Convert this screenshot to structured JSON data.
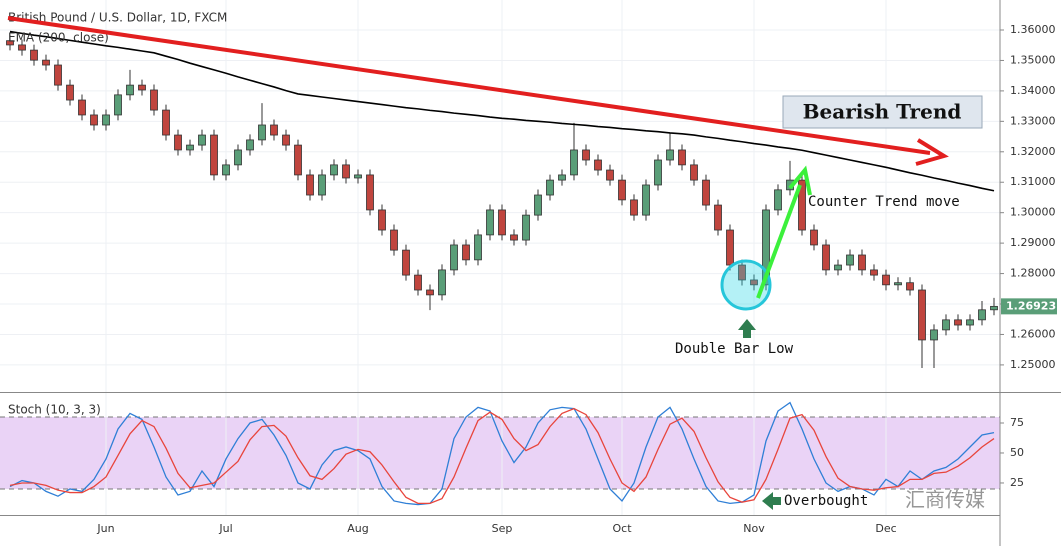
{
  "chart_data": [
    {
      "type": "candlestick",
      "title": "British Pound / U.S. Dollar, 1D, FXCM",
      "categories": [
        null,
        null,
        null,
        null,
        null,
        null,
        null,
        null,
        "Jun",
        null,
        null,
        null,
        null,
        null,
        null,
        null,
        null,
        null,
        "Jul",
        null,
        null,
        null,
        null,
        null,
        null,
        null,
        null,
        null,
        null,
        "Aug",
        null,
        null,
        null,
        null,
        null,
        null,
        null,
        null,
        null,
        null,
        null,
        "Sep",
        null,
        null,
        null,
        null,
        null,
        null,
        null,
        null,
        null,
        "Oct",
        null,
        null,
        null,
        null,
        null,
        null,
        null,
        null,
        null,
        null,
        "Nov",
        null,
        null,
        null,
        null,
        null,
        null,
        null,
        null,
        null,
        null,
        "Dec",
        null,
        null,
        null,
        null,
        null,
        null,
        null,
        null,
        null
      ],
      "open": [
        1.3565,
        1.3551,
        1.3534,
        1.3501,
        1.3485,
        1.3419,
        1.337,
        1.3321,
        1.3288,
        1.3321,
        1.3387,
        1.3419,
        1.3403,
        1.3337,
        1.3255,
        1.3206,
        1.3222,
        1.3255,
        1.3124,
        1.3157,
        1.3206,
        1.3239,
        1.3288,
        1.3255,
        1.3222,
        1.3124,
        1.3058,
        1.3124,
        1.3157,
        1.3114,
        1.3124,
        1.3009,
        1.2943,
        1.2877,
        1.2795,
        1.2746,
        1.273,
        1.2812,
        1.2894,
        1.2845,
        1.2927,
        1.3009,
        1.2927,
        1.291,
        1.2992,
        1.3058,
        1.3107,
        1.3124,
        1.3206,
        1.3173,
        1.314,
        1.3107,
        1.3042,
        1.2992,
        1.3091,
        1.3173,
        1.3206,
        1.3157,
        1.3107,
        1.3025,
        1.2943,
        1.2828,
        1.2779,
        1.2763,
        1.3009,
        1.3075,
        1.3107,
        1.2943,
        1.2894,
        1.2812,
        1.2828,
        1.2861,
        1.2812,
        1.2795,
        1.2763,
        1.277,
        1.2746,
        1.2582,
        1.2615,
        1.2648,
        1.2631,
        1.2648,
        1.2681
      ],
      "high": [
        1.3583,
        1.3569,
        1.3552,
        1.3519,
        1.3503,
        1.3437,
        1.3388,
        1.3339,
        1.3339,
        1.3405,
        1.3469,
        1.3437,
        1.3421,
        1.3355,
        1.3273,
        1.324,
        1.3273,
        1.3273,
        1.3175,
        1.3224,
        1.3257,
        1.336,
        1.3306,
        1.3273,
        1.324,
        1.3142,
        1.3142,
        1.3175,
        1.3175,
        1.3142,
        1.3142,
        1.3027,
        1.2961,
        1.2895,
        1.2813,
        1.2764,
        1.283,
        1.2912,
        1.2912,
        1.2945,
        1.3027,
        1.3027,
        1.2945,
        1.301,
        1.3076,
        1.3125,
        1.3142,
        1.3295,
        1.3224,
        1.3191,
        1.3158,
        1.3125,
        1.306,
        1.3109,
        1.3191,
        1.326,
        1.3224,
        1.3175,
        1.3125,
        1.3043,
        1.2961,
        1.2846,
        1.2797,
        1.3027,
        1.3093,
        1.317,
        1.3125,
        1.2961,
        1.2912,
        1.2846,
        1.2879,
        1.2879,
        1.283,
        1.2813,
        1.2788,
        1.2788,
        1.2764,
        1.2633,
        1.2666,
        1.2666,
        1.2666,
        1.271,
        1.272
      ],
      "low": [
        1.3533,
        1.3516,
        1.3483,
        1.3467,
        1.3401,
        1.3352,
        1.3303,
        1.327,
        1.327,
        1.3303,
        1.3369,
        1.3385,
        1.3319,
        1.3237,
        1.3188,
        1.3188,
        1.3204,
        1.3106,
        1.3106,
        1.3139,
        1.3188,
        1.3221,
        1.3237,
        1.3204,
        1.3106,
        1.304,
        1.304,
        1.3106,
        1.3096,
        1.3096,
        1.2991,
        1.2925,
        1.2859,
        1.2777,
        1.2728,
        1.268,
        1.2712,
        1.2794,
        1.2827,
        1.2827,
        1.2909,
        1.2909,
        1.2892,
        1.2892,
        1.2974,
        1.304,
        1.3089,
        1.3106,
        1.3155,
        1.3122,
        1.3089,
        1.3024,
        1.2974,
        1.2974,
        1.3073,
        1.3155,
        1.3139,
        1.3089,
        1.3007,
        1.2925,
        1.281,
        1.2761,
        1.2745,
        1.2745,
        1.2991,
        1.3057,
        1.2925,
        1.2876,
        1.2794,
        1.2794,
        1.281,
        1.2794,
        1.2777,
        1.2745,
        1.2745,
        1.2728,
        1.249,
        1.249,
        1.2597,
        1.2613,
        1.2613,
        1.263,
        1.2663
      ],
      "close": [
        1.3551,
        1.3534,
        1.3501,
        1.3485,
        1.3419,
        1.337,
        1.3321,
        1.3288,
        1.3321,
        1.3387,
        1.3419,
        1.3403,
        1.3337,
        1.3255,
        1.3206,
        1.3222,
        1.3255,
        1.3124,
        1.3157,
        1.3206,
        1.3239,
        1.3288,
        1.3255,
        1.3222,
        1.3124,
        1.3058,
        1.3124,
        1.3157,
        1.3114,
        1.3124,
        1.3009,
        1.2943,
        1.2877,
        1.2795,
        1.2746,
        1.273,
        1.2812,
        1.2894,
        1.2845,
        1.2927,
        1.3009,
        1.2927,
        1.291,
        1.2992,
        1.3058,
        1.3107,
        1.3124,
        1.3206,
        1.3173,
        1.314,
        1.3107,
        1.3042,
        1.2992,
        1.3091,
        1.3173,
        1.3206,
        1.3157,
        1.3107,
        1.3025,
        1.2943,
        1.2828,
        1.2779,
        1.2763,
        1.3009,
        1.3075,
        1.3107,
        1.2943,
        1.2894,
        1.2812,
        1.2828,
        1.2861,
        1.2812,
        1.2795,
        1.2763,
        1.277,
        1.2746,
        1.2582,
        1.2615,
        1.2648,
        1.2631,
        1.2648,
        1.2681,
        1.26923
      ],
      "up_color": "#5a9e78",
      "down_color": "#c0453e",
      "series": [
        {
          "name": "EMA (200, close)",
          "color": "#000000",
          "values": [
            1.3595,
            1.3589,
            1.3583,
            1.3578,
            1.3572,
            1.3566,
            1.356,
            1.3554,
            1.3548,
            1.3543,
            1.3537,
            1.3531,
            1.3525,
            1.3514,
            1.3503,
            1.3491,
            1.348,
            1.3469,
            1.3458,
            1.3446,
            1.3435,
            1.3424,
            1.3413,
            1.3401,
            1.339,
            1.3385,
            1.338,
            1.3375,
            1.337,
            1.3365,
            1.336,
            1.3355,
            1.335,
            1.3345,
            1.3341,
            1.3336,
            1.3332,
            1.3327,
            1.3323,
            1.3319,
            1.3314,
            1.331,
            1.3307,
            1.3303,
            1.33,
            1.3297,
            1.3293,
            1.329,
            1.3287,
            1.3283,
            1.328,
            1.3276,
            1.3273,
            1.3269,
            1.3266,
            1.3262,
            1.3259,
            1.3255,
            1.3249,
            1.3244,
            1.3238,
            1.3233,
            1.3227,
            1.3222,
            1.3216,
            1.3211,
            1.3205,
            1.3197,
            1.3189,
            1.3181,
            1.3173,
            1.3165,
            1.3157,
            1.3149,
            1.314,
            1.3131,
            1.3123,
            1.3114,
            1.3106,
            1.3097,
            1.3089,
            1.308,
            1.3072
          ]
        }
      ],
      "ylim": [
        1.2411,
        1.3692
      ],
      "yticks": [
        {
          "value": 1.25,
          "label": "1.25000"
        },
        {
          "value": 1.26,
          "label": "1.26000"
        },
        {
          "value": 1.27,
          "label": "1.27000"
        },
        {
          "value": 1.28,
          "label": "1.28000"
        },
        {
          "value": 1.29,
          "label": "1.29000"
        },
        {
          "value": 1.3,
          "label": "1.30000"
        },
        {
          "value": 1.31,
          "label": "1.31000"
        },
        {
          "value": 1.32,
          "label": "1.32000"
        },
        {
          "value": 1.33,
          "label": "1.33000"
        },
        {
          "value": 1.34,
          "label": "1.34000"
        },
        {
          "value": 1.35,
          "label": "1.35000"
        },
        {
          "value": 1.36,
          "label": "1.36000"
        }
      ],
      "grid": true,
      "annotations": [
        "Bearish Trend",
        "Counter Trend move",
        "Double Bar Low"
      ]
    },
    {
      "type": "line",
      "title": "Stoch (10, 3, 3)",
      "series": [
        {
          "color": "#2f7fd6",
          "values": [
            22,
            27,
            25,
            18,
            14,
            20,
            18,
            28,
            45,
            70,
            83,
            78,
            55,
            30,
            15,
            18,
            35,
            22,
            45,
            62,
            75,
            78,
            65,
            48,
            25,
            20,
            40,
            52,
            55,
            52,
            45,
            22,
            10,
            8,
            7,
            8,
            20,
            62,
            80,
            88,
            85,
            60,
            42,
            55,
            75,
            86,
            88,
            87,
            70,
            45,
            20,
            10,
            25,
            55,
            80,
            88,
            70,
            45,
            22,
            10,
            8,
            9,
            15,
            60,
            85,
            92,
            70,
            45,
            25,
            18,
            22,
            20,
            15,
            28,
            22,
            35,
            28,
            35,
            38,
            45,
            55,
            65,
            67
          ]
        },
        {
          "color": "#e8453c",
          "values": [
            23,
            25,
            25,
            23,
            19,
            17,
            17,
            22,
            30,
            48,
            66,
            77,
            72,
            54,
            33,
            21,
            23,
            25,
            34,
            43,
            61,
            72,
            73,
            64,
            46,
            31,
            28,
            37,
            49,
            53,
            51,
            40,
            26,
            13,
            8,
            8,
            12,
            30,
            54,
            77,
            84,
            78,
            62,
            52,
            57,
            72,
            83,
            87,
            82,
            67,
            45,
            25,
            18,
            30,
            53,
            74,
            79,
            68,
            46,
            26,
            13,
            9,
            11,
            28,
            53,
            79,
            82,
            69,
            47,
            29,
            22,
            20,
            19,
            21,
            22,
            28,
            28,
            33,
            34,
            39,
            46,
            55,
            62
          ]
        }
      ],
      "ylim": [
        -1.7,
        100
      ],
      "yticks": [
        25,
        50,
        75
      ],
      "levels": [
        20,
        80
      ],
      "band_color": "#ead3f6",
      "annotations": [
        "Overbought"
      ],
      "watermark": "汇商传媒"
    }
  ]
}
